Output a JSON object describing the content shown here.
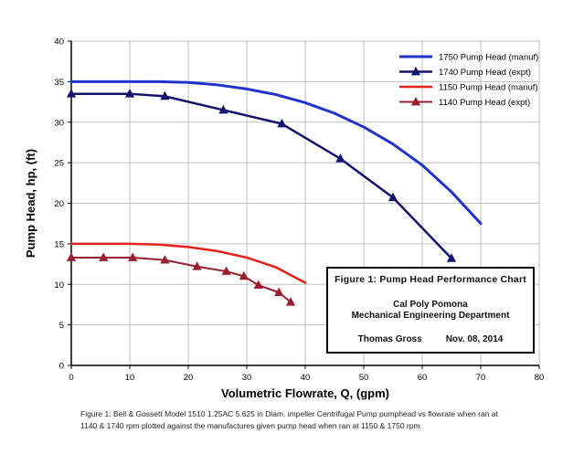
{
  "chart_data": {
    "type": "line",
    "xlabel": "Volumetric Flowrate, Q, (gpm)",
    "ylabel": "Pump Head, hp, (ft)",
    "xlim": [
      0,
      80
    ],
    "ylim": [
      0,
      40
    ],
    "xticks": [
      0,
      10,
      20,
      30,
      40,
      50,
      60,
      70,
      80
    ],
    "yticks": [
      0,
      5,
      10,
      15,
      20,
      25,
      30,
      35,
      40
    ],
    "grid": true,
    "legend_position": "top-right",
    "series": [
      {
        "name": "1750 Pump Head (manuf)",
        "color": "#2233cc",
        "marker": "none",
        "width": 3,
        "x": [
          0,
          5,
          10,
          15,
          20,
          25,
          30,
          35,
          40,
          45,
          50,
          55,
          60,
          65,
          70
        ],
        "y": [
          35,
          35,
          35,
          35,
          34.9,
          34.6,
          34.1,
          33.4,
          32.4,
          31.1,
          29.4,
          27.3,
          24.7,
          21.4,
          17.5
        ]
      },
      {
        "name": "1740 Pump Head (expt)",
        "color": "#14146e",
        "marker": "triangle",
        "width": 2.5,
        "x": [
          0,
          10,
          16,
          26,
          36,
          46,
          55,
          65
        ],
        "y": [
          33.5,
          33.5,
          33.2,
          31.5,
          29.8,
          25.5,
          20.7,
          13.2
        ]
      },
      {
        "name": "1150 Pump Head (manuf)",
        "color": "#e32219",
        "marker": "none",
        "width": 2.5,
        "x": [
          0,
          5,
          10,
          15,
          20,
          25,
          30,
          35,
          40
        ],
        "y": [
          15,
          15,
          15,
          14.9,
          14.6,
          14.1,
          13.3,
          12.1,
          10.2
        ]
      },
      {
        "name": "1140 Pump Head (expt)",
        "color": "#99202e",
        "marker": "triangle",
        "width": 2,
        "x": [
          0,
          5.5,
          10.5,
          16,
          21.5,
          26.5,
          29.5,
          32,
          35.5,
          37.5
        ],
        "y": [
          13.3,
          13.3,
          13.3,
          13,
          12.2,
          11.6,
          11,
          9.9,
          9,
          7.8
        ]
      }
    ],
    "title_box": {
      "line1": "Figure 1:  Pump Head Performance Chart",
      "line2": "Cal Poly Pomona",
      "line3": "Mechanical Engineering Department",
      "line4_left": "Thomas Gross",
      "line4_right": "Nov. 08, 2014"
    }
  },
  "caption": {
    "line1": "Figure 1: Bell & Gossett Model 1510 1.25AC 5.625 in Diam. impeller Centrifugal Pump pumphead vs flowrate when ran  at",
    "line2": "1140 & 1740 rpm plotted against the manufactures given pump head when ran at 1150 & 1750 rpm."
  }
}
